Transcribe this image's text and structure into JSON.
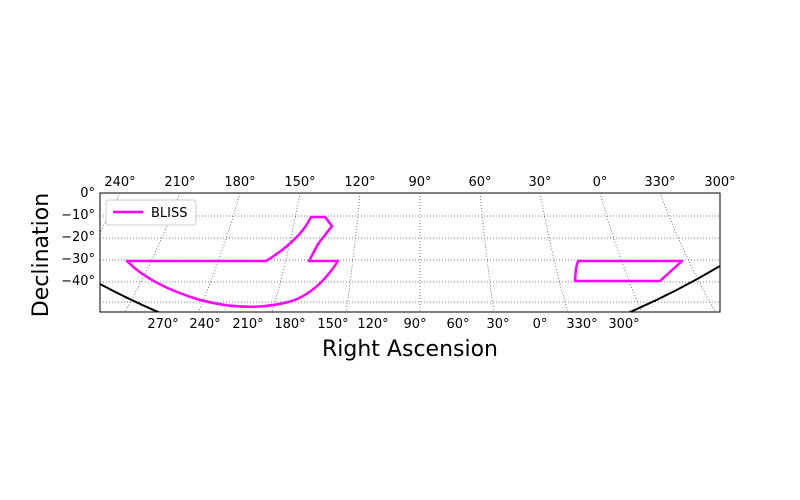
{
  "chart_data": {
    "type": "line",
    "projection": "sky map (Right Ascension / Declination)",
    "xlabel": "Right Ascension",
    "ylabel": "Declination",
    "top_ra_ticks": [
      "240°",
      "210°",
      "180°",
      "150°",
      "120°",
      "90°",
      "60°",
      "30°",
      "0°",
      "330°",
      "300°"
    ],
    "bottom_ra_ticks": [
      "270°",
      "240°",
      "210°",
      "180°",
      "150°",
      "120°",
      "90°",
      "60°",
      "30°",
      "0°",
      "330°",
      "300°"
    ],
    "dec_ticks": [
      "0°",
      "−10°",
      "−20°",
      "−30°",
      "−40°"
    ],
    "grid": true,
    "legend_position": "upper-left",
    "series": [
      {
        "name": "BLISS",
        "color": "#ff00ff",
        "polygons": [
          {
            "part": "west",
            "ra_range": [
              140,
              270
            ],
            "dec_range": [
              -50,
              -10
            ]
          },
          {
            "part": "east",
            "ra_range": [
              315,
              345
            ],
            "dec_range": [
              -40,
              -30
            ]
          }
        ]
      }
    ]
  }
}
